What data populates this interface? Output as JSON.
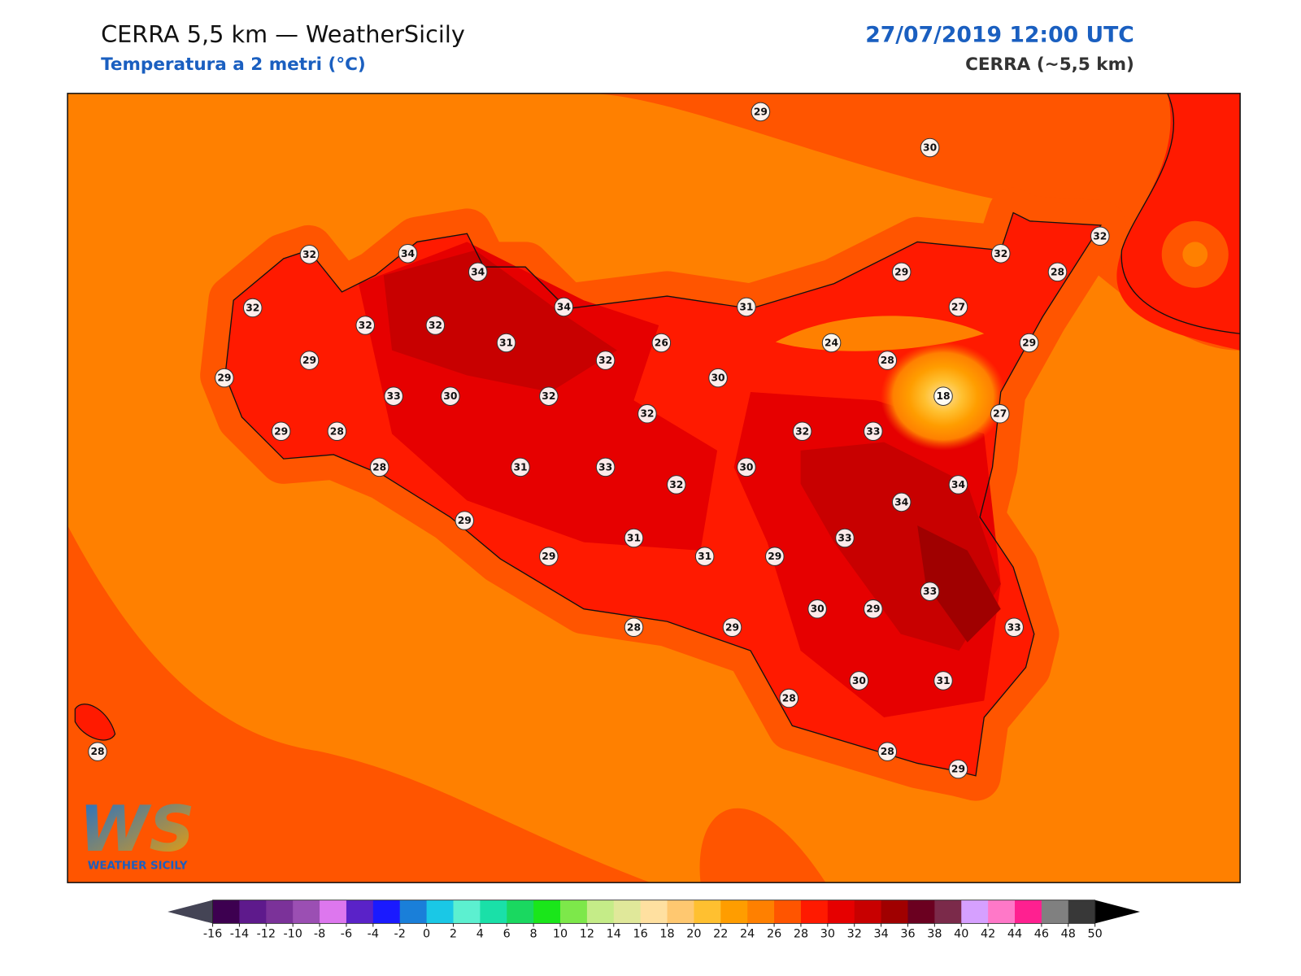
{
  "header": {
    "title": "CERRA 5,5 km — WeatherSicily",
    "subtitle": "Temperatura a 2 metri (°C)",
    "datetime": "27/07/2019 12:00 UTC",
    "model": "CERRA (~5,5 km)"
  },
  "stations": [
    29,
    30,
    32,
    34,
    34,
    32,
    32,
    29,
    28,
    32,
    34,
    31,
    27,
    32,
    32,
    31,
    26,
    24,
    29,
    29,
    32,
    28,
    29,
    30,
    33,
    30,
    32,
    18,
    32,
    27,
    29,
    28,
    32,
    33,
    28,
    31,
    33,
    30,
    32,
    34,
    34,
    29,
    33,
    31,
    29,
    31,
    29,
    33,
    30,
    29,
    33,
    28,
    29,
    30,
    31,
    28,
    28,
    28,
    29
  ],
  "colorbar": {
    "ticks": [
      -16,
      -14,
      -12,
      -10,
      -8,
      -6,
      -4,
      -2,
      0,
      2,
      4,
      6,
      8,
      10,
      12,
      14,
      16,
      18,
      20,
      22,
      24,
      26,
      28,
      30,
      32,
      34,
      36,
      38,
      40,
      42,
      44,
      46,
      48,
      50
    ],
    "colors": [
      "#3d0050",
      "#5e1a8c",
      "#7b3299",
      "#9b4fb3",
      "#dd77ee",
      "#5a22c8",
      "#1a1aff",
      "#1a7fd9",
      "#1ac8e6",
      "#5cf0d0",
      "#1ae0a8",
      "#1ad860",
      "#1ae61a",
      "#7de84a",
      "#c5ec88",
      "#e0e89a",
      "#ffe0a0",
      "#ffc870",
      "#ffc030",
      "#ff9d00",
      "#ff8000",
      "#ff5500",
      "#ff1a00",
      "#e60000",
      "#c80000",
      "#a00000",
      "#6b0020",
      "#7b2a4a",
      "#d6a0ff",
      "#ff78c8",
      "#ff2090",
      "#808080",
      "#383838"
    ],
    "under_color": "#444455",
    "over_color": "#000000"
  },
  "logo": {
    "mark": "WS",
    "text": "Weather Sicily"
  }
}
